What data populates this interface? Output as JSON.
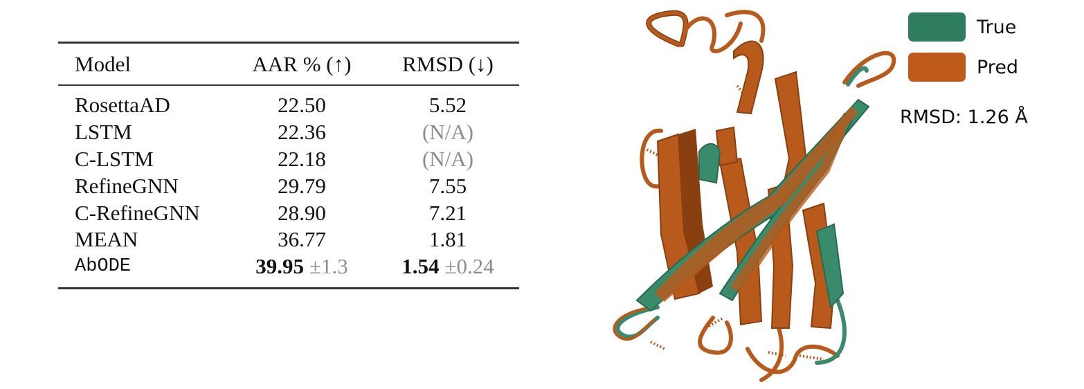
{
  "table": {
    "headers": {
      "model": "Model",
      "aar": "AAR % (↑)",
      "rmsd": "RMSD (↓)"
    },
    "rows": [
      {
        "model": "RosettaAD",
        "aar": "22.50",
        "rmsd": "5.52"
      },
      {
        "model": "LSTM",
        "aar": "22.36",
        "rmsd": "(N/A)"
      },
      {
        "model": "C-LSTM",
        "aar": "22.18",
        "rmsd": "(N/A)"
      },
      {
        "model": "RefineGNN",
        "aar": "29.79",
        "rmsd": "7.55"
      },
      {
        "model": "C-RefineGNN",
        "aar": "28.90",
        "rmsd": "7.21"
      },
      {
        "model": "MEAN",
        "aar": "36.77",
        "rmsd": "1.81"
      }
    ],
    "highlight_row": {
      "model": "AbODE",
      "aar": "39.95",
      "aar_std": "±1.3",
      "rmsd": "1.54",
      "rmsd_std": "±0.24"
    }
  },
  "legend": {
    "items": [
      {
        "label": "True",
        "color": "#2e7d5f"
      },
      {
        "label": "Pred",
        "color": "#bf5b1a"
      }
    ]
  },
  "rmsd_note": "RMSD: 1.26 Å",
  "colors": {
    "true": "#3a8a6c",
    "pred": "#b85a1c",
    "pred_dark": "#8a3f10",
    "rule": "#333333"
  }
}
